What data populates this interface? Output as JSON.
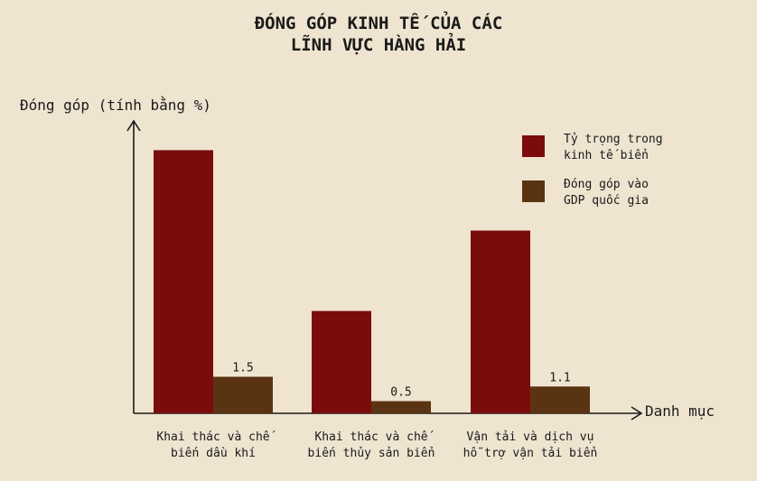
{
  "chart_data": {
    "type": "bar",
    "title": [
      "ĐÓNG GÓP KINH TẾ CỦA CÁC",
      "LĨNH VỰC HÀNG HẢI"
    ],
    "ylabel": "Đóng góp (tính bằng %)",
    "xlabel": "Danh mục",
    "categories": [
      [
        "Khai thác và chế",
        "biến dầu khí"
      ],
      [
        "Khai thác và chế",
        "biến thủy sản biển"
      ],
      [
        "Vận tải và dịch vụ",
        "hỗ trợ vận tải biển"
      ]
    ],
    "series": [
      {
        "name": [
          "Tỷ trọng trong",
          "kinh tế biển"
        ],
        "values": [
          10.8,
          4.2,
          7.5
        ],
        "color": "#7a0c0c",
        "show_labels": false
      },
      {
        "name": [
          "Đóng góp vào",
          "GDP quốc gia"
        ],
        "values": [
          1.5,
          0.5,
          1.1
        ],
        "color": "#5a3412",
        "show_labels": true
      }
    ],
    "ylim": [
      0,
      12
    ],
    "grid": false,
    "legend_position": "top-right",
    "y_ticks_shown": false
  }
}
